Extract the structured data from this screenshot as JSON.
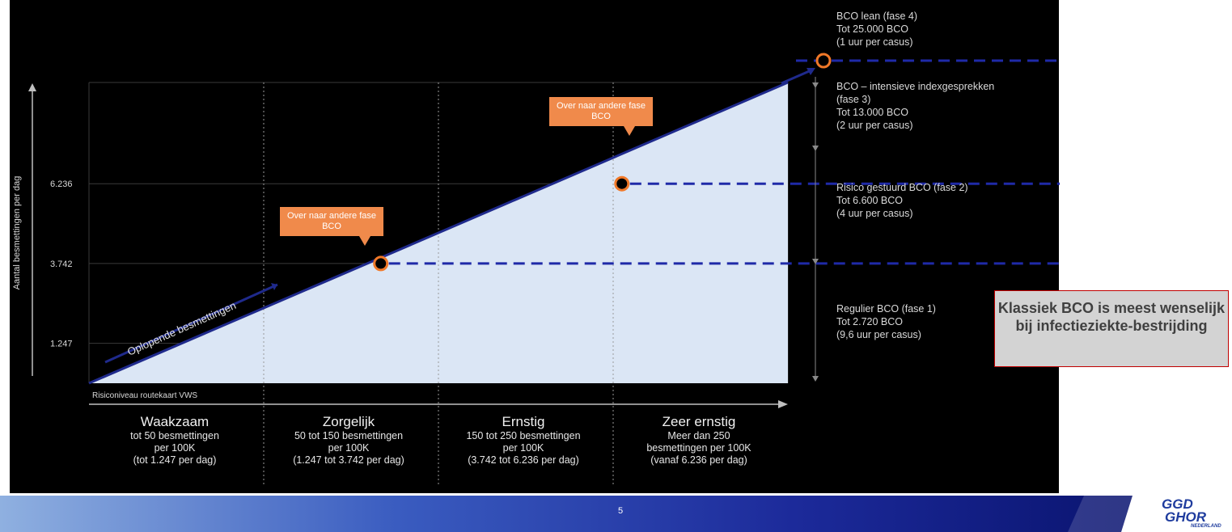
{
  "chart_data": {
    "type": "area",
    "ylabel": "Aantal besmettingen per dag",
    "yticks": [
      "1.247",
      "3.742",
      "6.236"
    ],
    "ytick_values": [
      1247,
      3742,
      6236
    ],
    "series": [
      {
        "x": [
          0,
          1,
          2,
          3,
          4
        ],
        "values": [
          0,
          1247,
          3742,
          6236,
          9400
        ]
      }
    ],
    "transition_points": [
      {
        "x": 1.67,
        "y": 3742,
        "label": "Over naar andere fase BCO"
      },
      {
        "x": 3.05,
        "y": 6236,
        "label": "Over naar andere fase BCO"
      }
    ],
    "arrow_labels": [
      "Oplopende besmettingen"
    ],
    "source_label": "Risiconiveau routekaart VWS",
    "bands": [
      {
        "title": "Waakzaam",
        "lines": [
          "tot 50 besmettingen",
          "per 100K",
          "(tot 1.247 per dag)"
        ]
      },
      {
        "title": "Zorgelijk",
        "lines": [
          "50 tot 150 besmettingen",
          "per 100K",
          "(1.247 tot 3.742 per dag)"
        ]
      },
      {
        "title": "Ernstig",
        "lines": [
          "150 tot 250 besmettingen",
          "per 100K",
          "(3.742 tot 6.236 per dag)"
        ]
      },
      {
        "title": "Zeer ernstig",
        "lines": [
          "Meer dan 250",
          "besmettingen per 100K",
          "(vanaf 6.236 per dag)"
        ]
      }
    ],
    "fases": [
      {
        "text": "BCO lean (fase 4)\nTot 25.000 BCO\n(1 uur per casus)"
      },
      {
        "text": "BCO – intensieve indexgesprekken\n(fase 3)\nTot 13.000 BCO\n(2 uur per casus)"
      },
      {
        "text": "Risico gestuurd BCO (fase 2)\nTot 6.600 BCO\n(4 uur per casus)"
      },
      {
        "text": "Regulier BCO (fase 1)\nTot 2.720 BCO\n(9,6 uur per casus)"
      }
    ]
  },
  "callout": {
    "label": "Klassiek BCO is meest wenselijk bij infectieziekte-bestrijding"
  },
  "footer": {
    "page_number": "5"
  },
  "logo": {
    "line1": "GGD",
    "line2": "GHOR",
    "line3": "NEDERLAND"
  },
  "colors": {
    "area_fill": "#dbe6f5",
    "line": "#1f2a8c",
    "marker": "#f07828",
    "callout": "#f08a4b",
    "dashed": "#1f2aa8"
  }
}
